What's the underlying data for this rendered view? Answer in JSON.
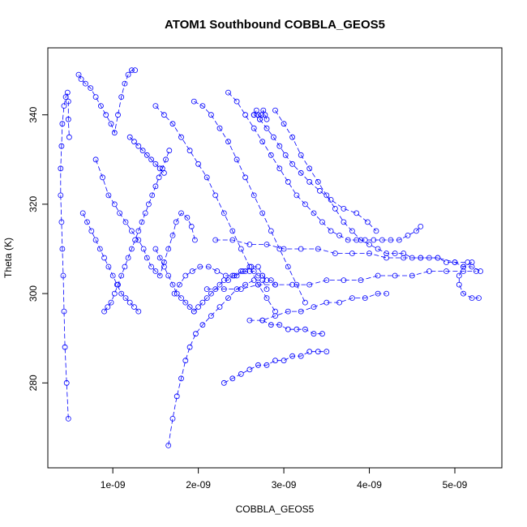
{
  "chart_data": {
    "type": "scatter",
    "title": "ATOM1 Southbound COBBLA_GEOS5",
    "xlabel": "COBBLA_GEOS5",
    "ylabel": "Theta (K)",
    "xlim": [
      2.4e-10,
      5.55e-09
    ],
    "ylim": [
      261,
      355
    ],
    "x_ticks": [
      {
        "value": 1e-09,
        "label": "1e-09"
      },
      {
        "value": 2e-09,
        "label": "2e-09"
      },
      {
        "value": 3e-09,
        "label": "3e-09"
      },
      {
        "value": 4e-09,
        "label": "4e-09"
      },
      {
        "value": 5e-09,
        "label": "5e-09"
      }
    ],
    "y_ticks": [
      {
        "value": 280,
        "label": "280"
      },
      {
        "value": 300,
        "label": "300"
      },
      {
        "value": 320,
        "label": "320"
      },
      {
        "value": 340,
        "label": "340"
      }
    ],
    "grid": false,
    "marker": "open-circle",
    "color": "#0000ff",
    "series": [
      {
        "x": [
          4.8e-10,
          4.6e-10,
          4.4e-10,
          4.3e-10,
          4.2e-10,
          4.1e-10,
          4e-10,
          3.9e-10,
          3.9e-10,
          4e-10,
          4.1e-10,
          4.3e-10,
          4.5e-10,
          4.7e-10,
          4.8e-10,
          4.8e-10,
          4.9e-10
        ],
        "y": [
          272,
          280,
          288,
          296,
          304,
          310,
          316,
          322,
          328,
          333,
          338,
          342,
          344,
          345,
          343,
          339,
          335
        ]
      },
      {
        "x": [
          6e-10,
          6.3e-10,
          6.8e-10,
          7.4e-10,
          8e-10,
          8.6e-10,
          9.2e-10,
          9.8e-10,
          1.02e-09,
          1.06e-09,
          1.1e-09,
          1.14e-09,
          1.18e-09,
          1.22e-09,
          1.26e-09
        ],
        "y": [
          349,
          348,
          347,
          346,
          344,
          342,
          340,
          338,
          336,
          340,
          344,
          347,
          349,
          350,
          350
        ]
      },
      {
        "x": [
          8e-10,
          8.8e-10,
          9.5e-10,
          1.02e-09,
          1.08e-09,
          1.15e-09,
          1.22e-09,
          1.3e-09,
          1.36e-09,
          1.4e-09,
          1.45e-09,
          1.5e-09,
          1.55e-09,
          1.6e-09,
          1.65e-09,
          1.7e-09,
          1.74e-09,
          1.8e-09,
          1.87e-09,
          1.92e-09,
          1.96e-09
        ],
        "y": [
          330,
          326,
          322,
          320,
          318,
          316,
          314,
          312,
          310,
          308,
          306,
          305,
          304,
          307,
          310,
          313,
          316,
          318,
          317,
          315,
          312
        ]
      },
      {
        "x": [
          1.65e-09,
          1.7e-09,
          1.75e-09,
          1.8e-09,
          1.85e-09,
          1.9e-09,
          1.97e-09,
          2.05e-09,
          2.15e-09,
          2.25e-09,
          2.35e-09,
          2.45e-09,
          2.55e-09,
          2.65e-09,
          2.75e-09,
          2.8e-09
        ],
        "y": [
          266,
          272,
          277,
          281,
          285,
          288,
          291,
          293,
          295,
          297,
          299,
          301,
          302,
          303,
          303,
          301
        ]
      },
      {
        "x": [
          1.72e-09,
          1.78e-09,
          1.85e-09,
          1.93e-09,
          2.02e-09,
          2.12e-09,
          2.22e-09,
          2.32e-09,
          2.42e-09,
          2.52e-09,
          2.62e-09,
          2.7e-09,
          2.75e-09
        ],
        "y": [
          300,
          302,
          304,
          305,
          306,
          306,
          305,
          304,
          304,
          305,
          306,
          306,
          304
        ]
      },
      {
        "x": [
          2.3e-09,
          2.4e-09,
          2.5e-09,
          2.6e-09,
          2.7e-09,
          2.8e-09,
          2.9e-09,
          3e-09,
          3.1e-09,
          3.2e-09,
          3.3e-09,
          3.4e-09,
          3.5e-09
        ],
        "y": [
          280,
          281,
          282,
          283,
          284,
          284,
          285,
          285,
          286,
          286,
          287,
          287,
          287
        ]
      },
      {
        "x": [
          2.6e-09,
          2.75e-09,
          2.9e-09,
          3.05e-09,
          3.2e-09,
          3.35e-09,
          3.5e-09,
          3.65e-09,
          3.8e-09,
          3.95e-09,
          4.1e-09,
          4.2e-09
        ],
        "y": [
          294,
          294,
          295,
          296,
          296,
          297,
          298,
          298,
          299,
          299,
          300,
          300
        ]
      },
      {
        "x": [
          2.1e-09,
          2.3e-09,
          2.5e-09,
          2.7e-09,
          2.9e-09,
          3.1e-09,
          3.3e-09,
          3.5e-09,
          3.7e-09,
          3.9e-09,
          4.1e-09,
          4.3e-09,
          4.5e-09,
          4.7e-09,
          4.9e-09,
          5.1e-09,
          5.25e-09
        ],
        "y": [
          301,
          301,
          301,
          302,
          302,
          302,
          302,
          303,
          303,
          303,
          304,
          304,
          304,
          305,
          305,
          305,
          305
        ]
      },
      {
        "x": [
          5.2e-09,
          5.1e-09,
          5.05e-09,
          5.05e-09,
          5.1e-09,
          5.2e-09,
          5.28e-09
        ],
        "y": [
          307,
          306,
          304,
          302,
          300,
          299,
          299
        ]
      },
      {
        "x": [
          2.2e-09,
          2.4e-09,
          2.6e-09,
          2.8e-09,
          3e-09,
          3.2e-09,
          3.4e-09,
          3.6e-09,
          3.8e-09,
          4e-09,
          4.2e-09,
          4.4e-09,
          4.6e-09,
          4.8e-09,
          5e-09,
          5.15e-09
        ],
        "y": [
          312,
          312,
          311,
          311,
          310,
          310,
          310,
          309,
          309,
          309,
          308,
          308,
          308,
          308,
          307,
          307
        ]
      },
      {
        "x": [
          2.35e-09,
          2.45e-09,
          2.55e-09,
          2.65e-09,
          2.75e-09,
          2.85e-09,
          2.95e-09,
          3.05e-09,
          3.15e-09,
          3.25e-09,
          3.35e-09,
          3.45e-09,
          3.55e-09,
          3.65e-09,
          3.75e-09,
          3.85e-09,
          3.95e-09,
          4.05e-09,
          4.15e-09,
          4.25e-09,
          4.35e-09,
          4.45e-09,
          4.55e-09,
          4.6e-09
        ],
        "y": [
          345,
          343,
          340,
          337,
          334,
          331,
          328,
          325,
          322,
          320,
          318,
          316,
          314,
          313,
          312,
          312,
          312,
          312,
          312,
          312,
          312,
          313,
          314,
          315
        ]
      },
      {
        "x": [
          2.65e-09,
          2.72e-09,
          2.8e-09,
          2.88e-09,
          2.95e-09,
          3.02e-09,
          3.1e-09,
          3.2e-09,
          3.3e-09,
          3.42e-09,
          3.55e-09,
          3.7e-09,
          3.85e-09,
          3.98e-09,
          4.08e-09
        ],
        "y": [
          340,
          339,
          337,
          335,
          333,
          331,
          329,
          327,
          325,
          323,
          321,
          319,
          318,
          316,
          314
        ]
      },
      {
        "x": [
          2.9e-09,
          3e-09,
          3.1e-09,
          3.2e-09,
          3.3e-09,
          3.4e-09,
          3.5e-09,
          3.6e-09,
          3.7e-09,
          3.8e-09,
          3.9e-09,
          4e-09,
          4.1e-09,
          4.2e-09,
          4.3e-09,
          4.4e-09,
          4.5e-09,
          4.6e-09,
          4.7e-09,
          4.8e-09,
          4.9e-09,
          5e-09,
          5.1e-09,
          5.2e-09,
          5.3e-09
        ],
        "y": [
          341,
          338,
          335,
          331,
          328,
          325,
          322,
          319,
          316,
          314,
          312,
          311,
          310,
          309,
          309,
          309,
          308,
          308,
          308,
          308,
          307,
          307,
          306,
          306,
          305
        ]
      },
      {
        "x": [
          2.65e-09,
          2.68e-09,
          2.7e-09,
          2.72e-09,
          2.74e-09,
          2.76e-09,
          2.78e-09,
          2.8e-09
        ],
        "y": [
          340,
          341,
          340,
          339,
          340,
          341,
          340,
          339
        ]
      },
      {
        "x": [
          1.95e-09,
          2.05e-09,
          2.15e-09,
          2.25e-09,
          2.35e-09,
          2.45e-09,
          2.55e-09,
          2.65e-09,
          2.75e-09,
          2.85e-09,
          2.95e-09,
          3.05e-09,
          3.15e-09,
          3.25e-09
        ],
        "y": [
          343,
          342,
          340,
          337,
          334,
          330,
          326,
          322,
          318,
          314,
          310,
          306,
          302,
          298
        ]
      },
      {
        "x": [
          1.5e-09,
          1.6e-09,
          1.7e-09,
          1.8e-09,
          1.9e-09,
          2e-09,
          2.1e-09,
          2.2e-09,
          2.3e-09,
          2.4e-09,
          2.5e-09,
          2.6e-09,
          2.7e-09,
          2.8e-09,
          2.9e-09
        ],
        "y": [
          342,
          340,
          338,
          335,
          332,
          329,
          326,
          322,
          318,
          314,
          310,
          306,
          302,
          299,
          296
        ]
      },
      {
        "x": [
          9e-10,
          9.4e-10,
          9.8e-10,
          1.02e-09,
          1.06e-09,
          1.1e-09,
          1.14e-09,
          1.18e-09,
          1.22e-09,
          1.26e-09,
          1.3e-09,
          1.34e-09,
          1.38e-09,
          1.42e-09,
          1.46e-09,
          1.5e-09,
          1.54e-09,
          1.58e-09,
          1.62e-09,
          1.66e-09
        ],
        "y": [
          296,
          297,
          298,
          300,
          302,
          304,
          306,
          308,
          310,
          312,
          314,
          316,
          318,
          320,
          322,
          324,
          326,
          328,
          330,
          332
        ]
      },
      {
        "x": [
          1.5e-09,
          1.55e-09,
          1.6e-09,
          1.65e-09,
          1.7e-09,
          1.75e-09,
          1.8e-09,
          1.85e-09,
          1.9e-09,
          1.95e-09
        ],
        "y": [
          310,
          308,
          306,
          304,
          302,
          300,
          299,
          298,
          297,
          296
        ]
      },
      {
        "x": [
          1.95e-09,
          2e-09,
          2.05e-09,
          2.1e-09,
          2.15e-09,
          2.2e-09,
          2.25e-09,
          2.3e-09,
          2.35e-09,
          2.4e-09,
          2.45e-09,
          2.5e-09,
          2.55e-09,
          2.6e-09,
          2.65e-09,
          2.7e-09,
          2.75e-09,
          2.8e-09,
          2.85e-09,
          2.9e-09
        ],
        "y": [
          296,
          297,
          298,
          299,
          300,
          301,
          302,
          303,
          303,
          304,
          304,
          305,
          305,
          305,
          305,
          304,
          304,
          303,
          303,
          302
        ]
      },
      {
        "x": [
          2.75e-09,
          2.85e-09,
          2.95e-09,
          3.05e-09,
          3.15e-09,
          3.25e-09,
          3.35e-09,
          3.45e-09
        ],
        "y": [
          294,
          293,
          293,
          292,
          292,
          292,
          291,
          291
        ]
      },
      {
        "x": [
          1.2e-09,
          1.25e-09,
          1.3e-09,
          1.35e-09,
          1.4e-09,
          1.45e-09,
          1.5e-09,
          1.55e-09,
          1.6e-09
        ],
        "y": [
          335,
          334,
          333,
          332,
          331,
          330,
          329,
          328,
          327
        ]
      },
      {
        "x": [
          6.5e-10,
          7e-10,
          7.5e-10,
          8e-10,
          8.5e-10,
          9e-10,
          9.5e-10,
          1e-09,
          1.05e-09,
          1.1e-09,
          1.15e-09,
          1.2e-09,
          1.25e-09,
          1.3e-09
        ],
        "y": [
          318,
          316,
          314,
          312,
          310,
          308,
          306,
          304,
          302,
          300,
          299,
          298,
          297,
          296
        ]
      }
    ]
  }
}
